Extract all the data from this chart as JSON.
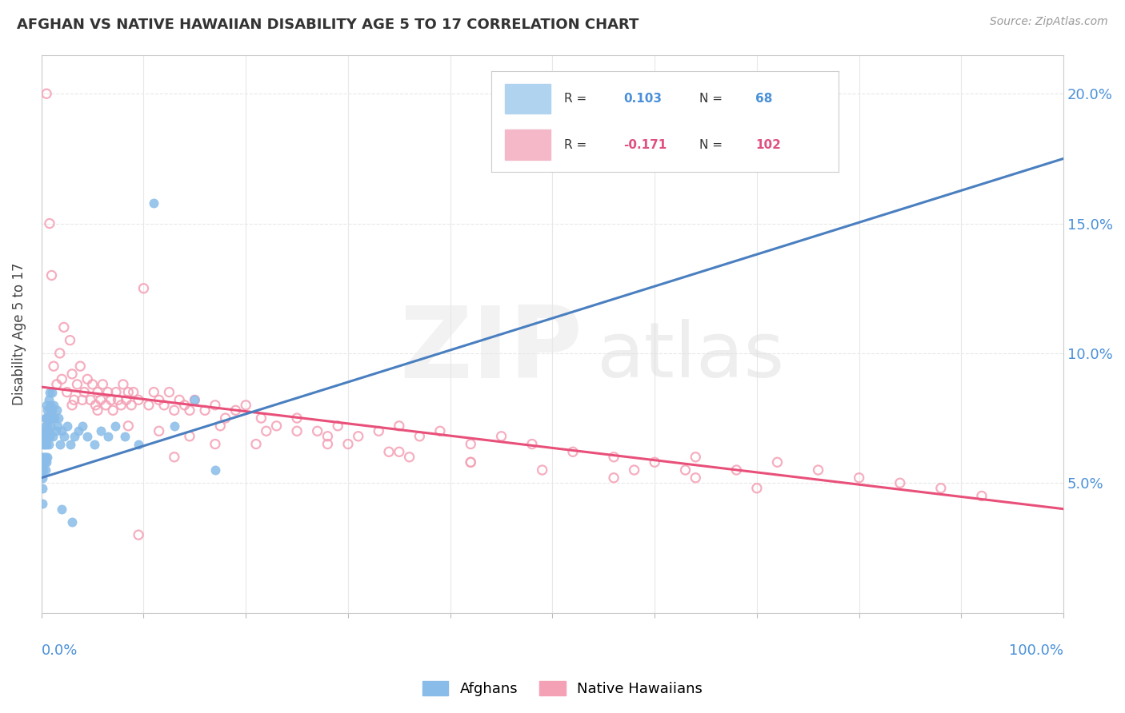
{
  "title": "AFGHAN VS NATIVE HAWAIIAN DISABILITY AGE 5 TO 17 CORRELATION CHART",
  "source": "Source: ZipAtlas.com",
  "ylabel": "Disability Age 5 to 17",
  "legend_afghan_R": "0.103",
  "legend_afghan_N": "68",
  "legend_hawaiian_R": "-0.171",
  "legend_hawaiian_N": "102",
  "afghan_color": "#89bce8",
  "hawaiian_face_color": "#f4a0b5",
  "hawaiian_edge_color": "#f4a0b5",
  "afghan_solid_line_color": "#4a7fc0",
  "afghan_dashed_line_color": "#6699cc",
  "hawaiian_line_color": "#e8507a",
  "background_color": "#ffffff",
  "grid_color": "#e8e8e8",
  "title_color": "#333333",
  "tick_color_blue": "#4a90d9",
  "source_color": "#999999",
  "legend_box_color": "#cccccc",
  "legend_afghan_box": "#b0d4f0",
  "legend_hawaiian_box": "#f4b8c8",
  "legend_R_color_blue": "#4a90d9",
  "legend_R_color_pink": "#e05080",
  "xlim": [
    0.0,
    1.0
  ],
  "ylim": [
    0.0,
    0.215
  ],
  "yticks": [
    0.0,
    0.05,
    0.1,
    0.15,
    0.2
  ],
  "ytick_labels_right": [
    "",
    "5.0%",
    "10.0%",
    "15.0%",
    "20.0%"
  ],
  "xtick_left_label": "0.0%",
  "xtick_right_label": "100.0%",
  "afghan_trend_x0": 0.0,
  "afghan_trend_y0": 0.052,
  "afghan_trend_x1": 1.0,
  "afghan_trend_y1": 0.175,
  "hawaiian_trend_x0": 0.0,
  "hawaiian_trend_y0": 0.087,
  "hawaiian_trend_x1": 1.0,
  "hawaiian_trend_y1": 0.04,
  "afghans_x": [
    0.001,
    0.001,
    0.001,
    0.001,
    0.001,
    0.002,
    0.002,
    0.002,
    0.002,
    0.003,
    0.003,
    0.003,
    0.003,
    0.003,
    0.004,
    0.004,
    0.004,
    0.004,
    0.004,
    0.005,
    0.005,
    0.005,
    0.005,
    0.005,
    0.006,
    0.006,
    0.006,
    0.006,
    0.007,
    0.007,
    0.007,
    0.007,
    0.008,
    0.008,
    0.008,
    0.009,
    0.009,
    0.01,
    0.01,
    0.011,
    0.011,
    0.012,
    0.013,
    0.014,
    0.015,
    0.016,
    0.017,
    0.018,
    0.02,
    0.022,
    0.025,
    0.028,
    0.032,
    0.036,
    0.04,
    0.045,
    0.052,
    0.058,
    0.065,
    0.072,
    0.082,
    0.095,
    0.11,
    0.13,
    0.15,
    0.17,
    0.02,
    0.03
  ],
  "afghans_y": [
    0.042,
    0.055,
    0.06,
    0.048,
    0.052,
    0.058,
    0.065,
    0.055,
    0.06,
    0.065,
    0.07,
    0.06,
    0.058,
    0.068,
    0.075,
    0.068,
    0.06,
    0.072,
    0.055,
    0.07,
    0.075,
    0.065,
    0.08,
    0.058,
    0.078,
    0.068,
    0.073,
    0.06,
    0.082,
    0.07,
    0.075,
    0.065,
    0.085,
    0.078,
    0.068,
    0.08,
    0.072,
    0.078,
    0.085,
    0.075,
    0.068,
    0.08,
    0.075,
    0.07,
    0.078,
    0.072,
    0.075,
    0.065,
    0.07,
    0.068,
    0.072,
    0.065,
    0.068,
    0.07,
    0.072,
    0.068,
    0.065,
    0.07,
    0.068,
    0.072,
    0.068,
    0.065,
    0.158,
    0.072,
    0.082,
    0.055,
    0.04,
    0.035
  ],
  "hawaiians_x": [
    0.005,
    0.008,
    0.01,
    0.012,
    0.015,
    0.018,
    0.02,
    0.022,
    0.025,
    0.028,
    0.03,
    0.032,
    0.035,
    0.038,
    0.04,
    0.042,
    0.045,
    0.048,
    0.05,
    0.053,
    0.055,
    0.058,
    0.06,
    0.063,
    0.065,
    0.068,
    0.07,
    0.073,
    0.075,
    0.078,
    0.08,
    0.083,
    0.085,
    0.088,
    0.09,
    0.095,
    0.1,
    0.105,
    0.11,
    0.115,
    0.12,
    0.125,
    0.13,
    0.135,
    0.14,
    0.145,
    0.15,
    0.16,
    0.17,
    0.18,
    0.19,
    0.2,
    0.215,
    0.23,
    0.25,
    0.27,
    0.29,
    0.31,
    0.33,
    0.35,
    0.37,
    0.39,
    0.42,
    0.45,
    0.48,
    0.52,
    0.56,
    0.6,
    0.64,
    0.68,
    0.72,
    0.76,
    0.8,
    0.84,
    0.88,
    0.92,
    0.28,
    0.34,
    0.58,
    0.64,
    0.03,
    0.055,
    0.085,
    0.115,
    0.145,
    0.175,
    0.21,
    0.25,
    0.3,
    0.36,
    0.42,
    0.49,
    0.56,
    0.63,
    0.7,
    0.42,
    0.35,
    0.28,
    0.22,
    0.17,
    0.13,
    0.095
  ],
  "hawaiians_y": [
    0.2,
    0.15,
    0.13,
    0.095,
    0.088,
    0.1,
    0.09,
    0.11,
    0.085,
    0.105,
    0.092,
    0.082,
    0.088,
    0.095,
    0.082,
    0.085,
    0.09,
    0.082,
    0.088,
    0.08,
    0.085,
    0.082,
    0.088,
    0.08,
    0.085,
    0.082,
    0.078,
    0.085,
    0.082,
    0.08,
    0.088,
    0.082,
    0.085,
    0.08,
    0.085,
    0.082,
    0.125,
    0.08,
    0.085,
    0.082,
    0.08,
    0.085,
    0.078,
    0.082,
    0.08,
    0.078,
    0.082,
    0.078,
    0.08,
    0.075,
    0.078,
    0.08,
    0.075,
    0.072,
    0.075,
    0.07,
    0.072,
    0.068,
    0.07,
    0.072,
    0.068,
    0.07,
    0.065,
    0.068,
    0.065,
    0.062,
    0.06,
    0.058,
    0.06,
    0.055,
    0.058,
    0.055,
    0.052,
    0.05,
    0.048,
    0.045,
    0.065,
    0.062,
    0.055,
    0.052,
    0.08,
    0.078,
    0.072,
    0.07,
    0.068,
    0.072,
    0.065,
    0.07,
    0.065,
    0.06,
    0.058,
    0.055,
    0.052,
    0.055,
    0.048,
    0.058,
    0.062,
    0.068,
    0.07,
    0.065,
    0.06,
    0.03
  ]
}
